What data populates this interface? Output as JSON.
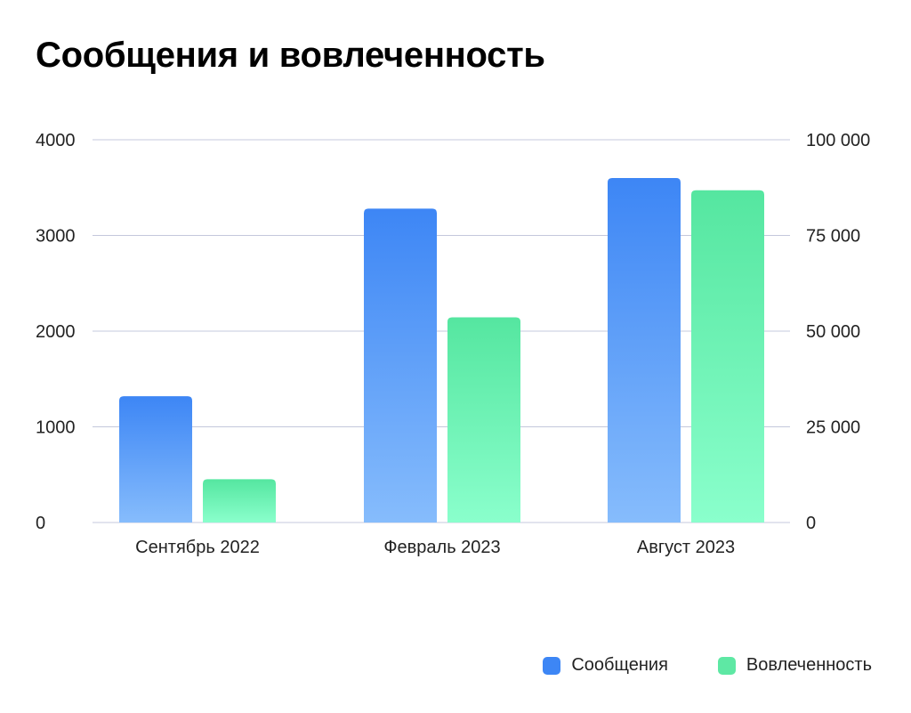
{
  "chart_data": {
    "type": "bar",
    "title": "Сообщения и вовлеченность",
    "categories": [
      "Сентябрь 2022",
      "Февраль 2023",
      "Август 2023"
    ],
    "series": [
      {
        "name": "Сообщения",
        "axis": "left",
        "values": [
          1320,
          3280,
          3600
        ],
        "color": "#3d86f5"
      },
      {
        "name": "Вовлеченность",
        "axis": "right",
        "values": [
          11300,
          53600,
          86800
        ],
        "color": "#5ee8a4"
      }
    ],
    "y_left": {
      "ylim": [
        0,
        4000
      ],
      "ticks": [
        "0",
        "1000",
        "2000",
        "3000",
        "4000"
      ]
    },
    "y_right": {
      "ylim": [
        0,
        100000
      ],
      "ticks": [
        "0",
        "25 000",
        "50 000",
        "75 000",
        "100 000"
      ]
    },
    "grid": true,
    "legend_position": "bottom-right",
    "colors": {
      "messages_top": "#3d86f5",
      "messages_bottom": "#86bcfc",
      "engagement_top": "#55e6a0",
      "engagement_bottom": "#8affcc",
      "grid": "#c4c8dc"
    }
  }
}
